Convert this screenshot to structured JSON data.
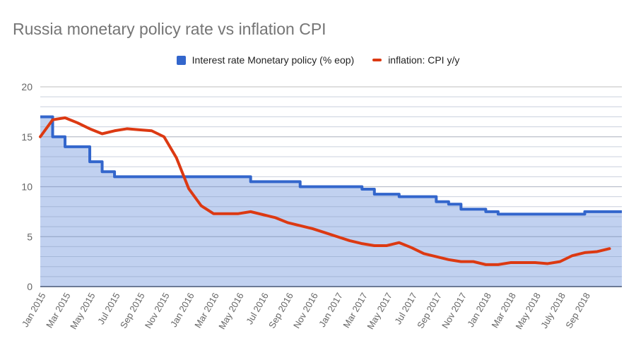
{
  "chart_data": {
    "type": "area+line",
    "title": "Russia monetary policy rate vs inflation CPI",
    "legend_position": "top",
    "grid": true,
    "ylim": [
      0,
      20
    ],
    "y_ticks": [
      "0",
      "5",
      "10",
      "15",
      "20"
    ],
    "x_tick_labels": [
      "Jan 2015",
      "Mar 2015",
      "May 2015",
      "Jul 2015",
      "Sep 2015",
      "Nov 2015",
      "Jan 2016",
      "Mar 2016",
      "May 2016",
      "Jul 2016",
      "Sep 2016",
      "Nov 2016",
      "Jan 2017",
      "Mar 2017",
      "May 2017",
      "Jul 2017",
      "Sep 2017",
      "Nov 2017",
      "Jan 2018",
      "Mar 2018",
      "May 2018",
      "July 2018",
      "Sep 2018"
    ],
    "months_count": 48,
    "series": [
      {
        "name": "Interest rate Monetary policy (% eop)",
        "style": "stepped-area",
        "color": "#3366cc",
        "values": [
          17,
          15,
          14,
          14,
          12.5,
          11.5,
          11,
          11,
          11,
          11,
          11,
          11,
          11,
          11,
          11,
          11,
          11,
          10.5,
          10.5,
          10.5,
          10.5,
          10,
          10,
          10,
          10,
          10,
          9.75,
          9.25,
          9.25,
          9,
          9,
          9,
          8.5,
          8.25,
          7.75,
          7.75,
          7.5,
          7.25,
          7.25,
          7.25,
          7.25,
          7.25,
          7.25,
          7.25,
          7.5,
          7.5,
          7.5,
          7.5
        ]
      },
      {
        "name": "inflation: CPI y/y",
        "style": "line",
        "color": "#dc3912",
        "values": [
          15.0,
          16.7,
          16.9,
          16.4,
          15.8,
          15.3,
          15.6,
          15.8,
          15.7,
          15.6,
          15.0,
          12.9,
          9.8,
          8.1,
          7.3,
          7.3,
          7.3,
          7.5,
          7.2,
          6.9,
          6.4,
          6.1,
          5.8,
          5.4,
          5.0,
          4.6,
          4.3,
          4.1,
          4.1,
          4.4,
          3.9,
          3.3,
          3.0,
          2.7,
          2.5,
          2.5,
          2.2,
          2.2,
          2.4,
          2.4,
          2.4,
          2.3,
          2.5,
          3.1,
          3.4,
          3.5,
          3.8
        ]
      }
    ]
  }
}
